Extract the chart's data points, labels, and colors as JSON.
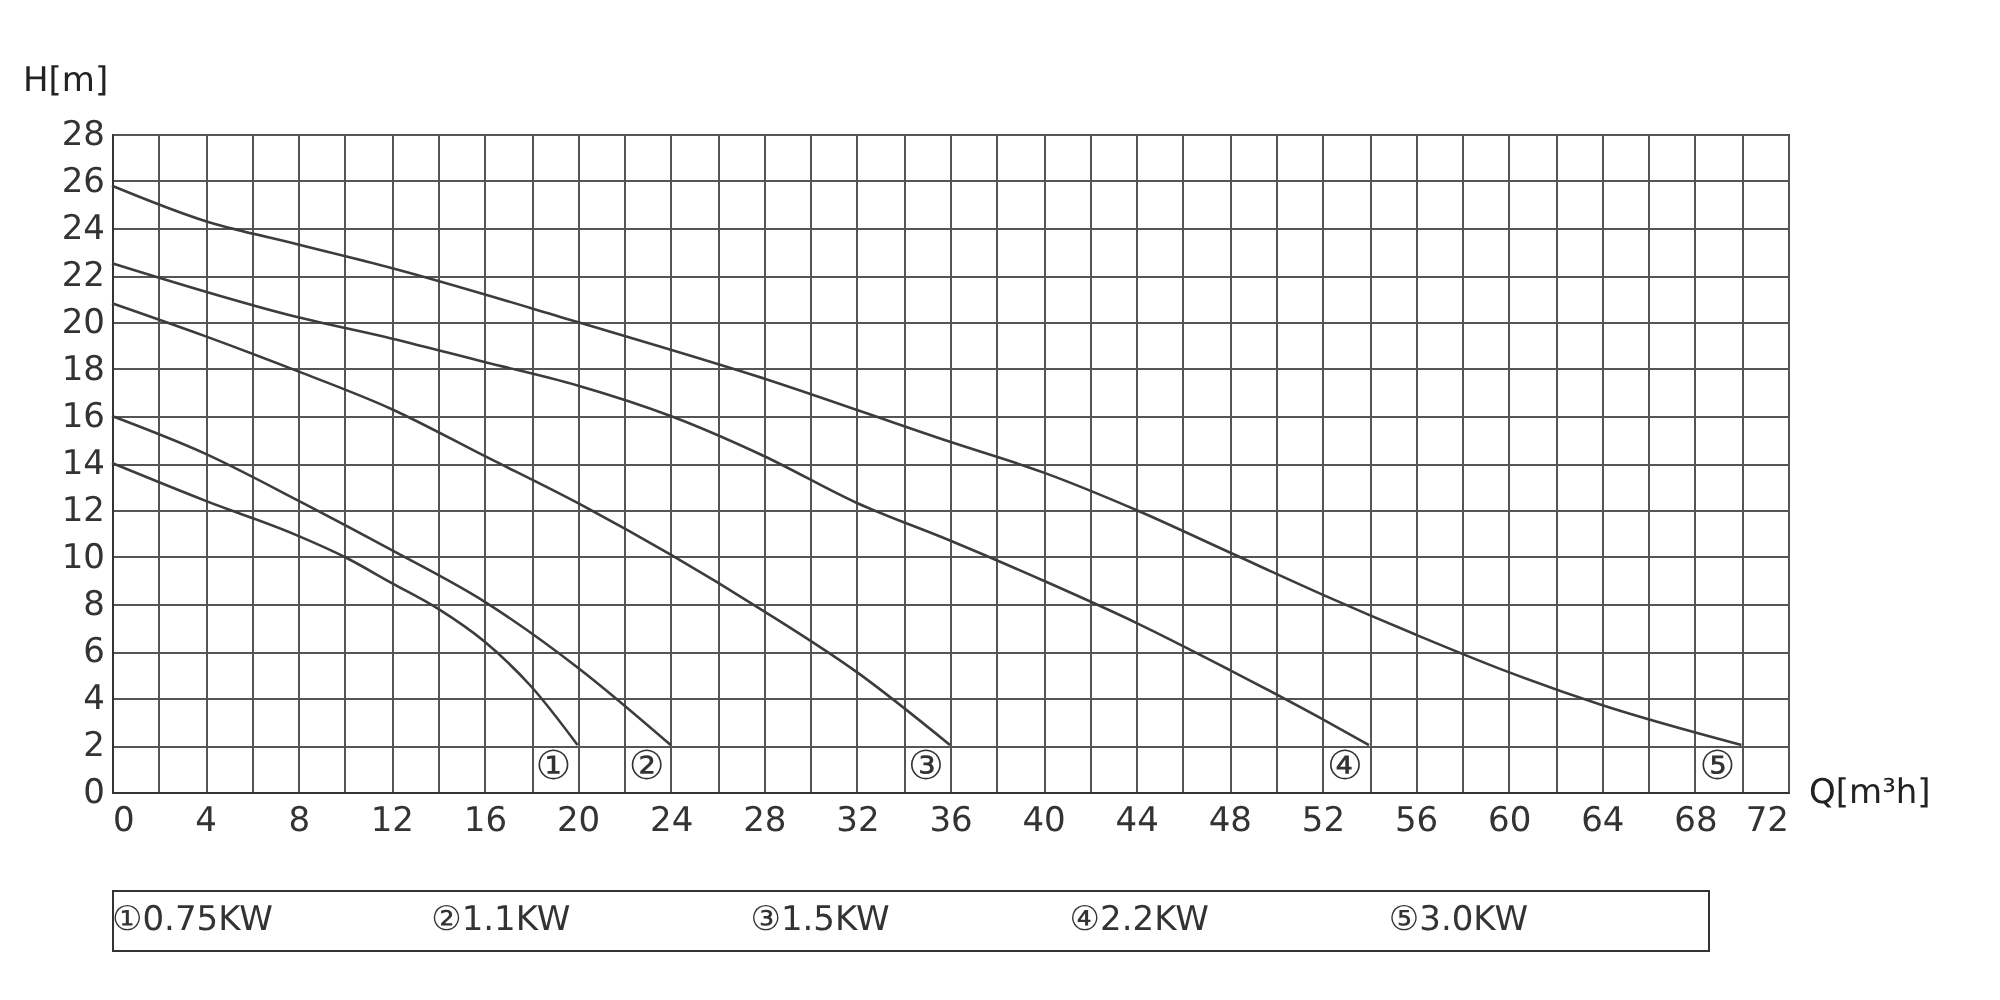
{
  "chart_data": {
    "type": "line",
    "xlabel": "Q[m³h]",
    "ylabel": "H[m]",
    "xlim": [
      0,
      72
    ],
    "ylim": [
      0,
      28
    ],
    "xticks": [
      0,
      {
        "value": 2,
        "label": null
      },
      4,
      {
        "value": 6,
        "label": null
      },
      8,
      {
        "value": 10,
        "label": null
      },
      12,
      {
        "value": 14,
        "label": null
      },
      16,
      {
        "value": 18,
        "label": null
      },
      20,
      {
        "value": 22,
        "label": null
      },
      24,
      {
        "value": 26,
        "label": null
      },
      28,
      {
        "value": 30,
        "label": null
      },
      32,
      {
        "value": 34,
        "label": null
      },
      36,
      {
        "value": 38,
        "label": null
      },
      40,
      {
        "value": 42,
        "label": null
      },
      44,
      {
        "value": 46,
        "label": null
      },
      48,
      {
        "value": 50,
        "label": null
      },
      52,
      {
        "value": 54,
        "label": null
      },
      56,
      {
        "value": 58,
        "label": null
      },
      60,
      {
        "value": 62,
        "label": null
      },
      64,
      {
        "value": 66,
        "label": null
      },
      68,
      {
        "value": 70,
        "label": null
      },
      72
    ],
    "yticks": [
      0,
      2,
      4,
      6,
      8,
      10,
      12,
      14,
      16,
      18,
      20,
      22,
      24,
      26,
      28
    ],
    "grid": true,
    "legend": false,
    "marker": "none",
    "line_style": "solid",
    "series": [
      {
        "color": "#3c3c3c",
        "x": [
          0,
          4,
          8,
          10,
          12,
          14,
          16,
          18,
          20
        ],
        "values": [
          14,
          12.4,
          10.9,
          10,
          8.9,
          7.8,
          6.4,
          4.5,
          2
        ]
      },
      {
        "color": "#3c3c3c",
        "x": [
          0,
          4,
          8,
          12,
          16,
          20,
          24
        ],
        "values": [
          16,
          14.4,
          12.4,
          10.3,
          8.1,
          5.3,
          2
        ]
      },
      {
        "color": "#3c3c3c",
        "x": [
          0,
          4,
          8,
          12,
          16,
          20,
          24,
          28,
          32,
          36
        ],
        "values": [
          20.8,
          19.4,
          17.9,
          16.3,
          14.3,
          12.3,
          10.1,
          7.7,
          5.1,
          2
        ]
      },
      {
        "color": "#3c3c3c",
        "x": [
          0,
          8,
          12,
          16,
          20,
          24,
          28,
          32,
          36,
          40,
          44,
          48,
          52,
          54
        ],
        "values": [
          22.5,
          20.2,
          19.3,
          18.3,
          17.3,
          16,
          14.3,
          12.3,
          10.7,
          9,
          7.2,
          5.2,
          3.1,
          2
        ]
      },
      {
        "color": "#3c3c3c",
        "x": [
          0,
          4,
          8,
          12,
          20,
          28,
          36,
          40,
          44,
          48,
          52,
          56,
          60,
          64,
          70
        ],
        "values": [
          25.8,
          24.3,
          23.3,
          22.3,
          20,
          17.6,
          14.9,
          13.6,
          12,
          10.2,
          8.4,
          6.7,
          5.1,
          3.7,
          2
        ]
      }
    ],
    "annotations": [
      {
        "text": "①",
        "x": 20,
        "y": 2
      },
      {
        "text": "②",
        "x": 24,
        "y": 2
      },
      {
        "text": "③",
        "x": 36,
        "y": 2
      },
      {
        "text": "④",
        "x": 54,
        "y": 2
      },
      {
        "text": "⑤",
        "x": 70,
        "y": 2
      },
      "①0.75KW",
      "②1.1KW",
      "③1.5KW",
      "④2.2KW",
      "⑤3.0KW"
    ]
  }
}
